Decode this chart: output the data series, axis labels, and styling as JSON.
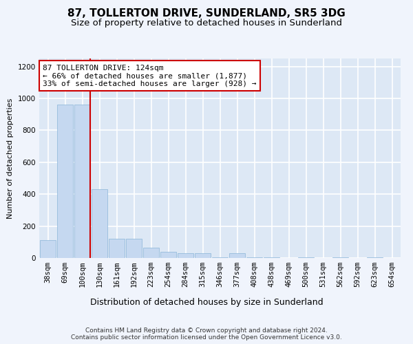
{
  "title": "87, TOLLERTON DRIVE, SUNDERLAND, SR5 3DG",
  "subtitle": "Size of property relative to detached houses in Sunderland",
  "xlabel": "Distribution of detached houses by size in Sunderland",
  "ylabel": "Number of detached properties",
  "categories": [
    "38sqm",
    "69sqm",
    "100sqm",
    "130sqm",
    "161sqm",
    "192sqm",
    "223sqm",
    "254sqm",
    "284sqm",
    "315sqm",
    "346sqm",
    "377sqm",
    "408sqm",
    "438sqm",
    "469sqm",
    "500sqm",
    "531sqm",
    "562sqm",
    "592sqm",
    "623sqm",
    "654sqm"
  ],
  "values": [
    110,
    960,
    960,
    430,
    120,
    120,
    65,
    40,
    30,
    30,
    5,
    30,
    5,
    5,
    0,
    5,
    0,
    5,
    0,
    5,
    0
  ],
  "bar_color": "#c5d8f0",
  "bar_edge_color": "#8ab4d8",
  "red_line_color": "#cc0000",
  "annotation_text": "87 TOLLERTON DRIVE: 124sqm\n← 66% of detached houses are smaller (1,877)\n33% of semi-detached houses are larger (928) →",
  "annotation_box_color": "#ffffff",
  "annotation_box_edge_color": "#cc0000",
  "ylim": [
    0,
    1250
  ],
  "yticks": [
    0,
    200,
    400,
    600,
    800,
    1000,
    1200
  ],
  "footnote": "Contains HM Land Registry data © Crown copyright and database right 2024.\nContains public sector information licensed under the Open Government Licence v3.0.",
  "fig_bg_color": "#f0f4fc",
  "plot_bg_color": "#dde8f5",
  "grid_color": "#ffffff",
  "title_fontsize": 11,
  "subtitle_fontsize": 9.5,
  "xlabel_fontsize": 9,
  "ylabel_fontsize": 8,
  "tick_fontsize": 7.5,
  "annotation_fontsize": 8,
  "footnote_fontsize": 6.5,
  "red_line_x": 2.46
}
